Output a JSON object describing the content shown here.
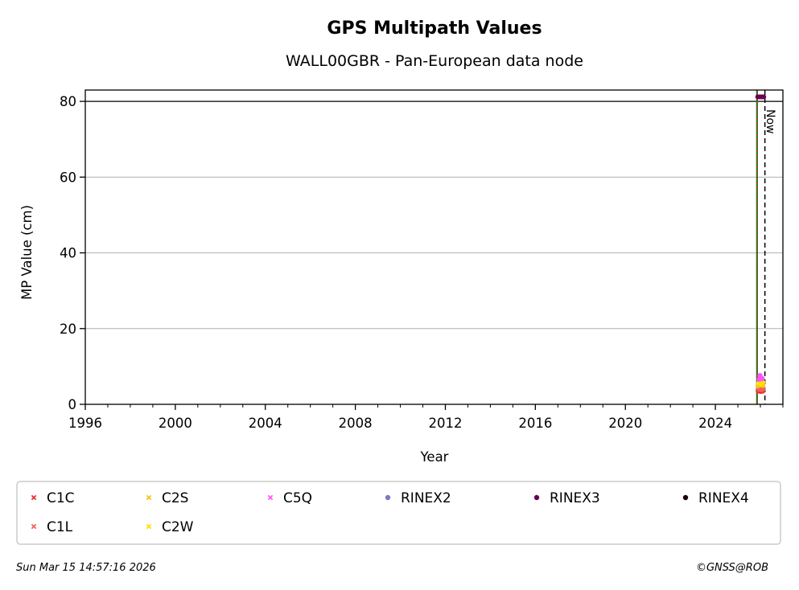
{
  "chart_data": {
    "type": "scatter",
    "title": "GPS Multipath Values",
    "subtitle": "WALL00GBR - Pan-European data node",
    "xlabel": "Year",
    "ylabel": "MP Value (cm)",
    "xlim": [
      1996,
      2027
    ],
    "ylim": [
      0,
      83
    ],
    "x_ticks": [
      1996,
      2000,
      2004,
      2008,
      2012,
      2016,
      2020,
      2024
    ],
    "y_ticks": [
      0,
      20,
      40,
      60,
      80
    ],
    "grid": "horizontal",
    "reference_line_y": 80,
    "now_label": "Now",
    "now_x": 2026.2,
    "green_line_x": 2025.85,
    "legend_position": "bottom",
    "series": [
      {
        "name": "C1C",
        "color": "#e8322b",
        "marker": "x",
        "points": [
          [
            2025.9,
            3.6
          ],
          [
            2026.0,
            3.4
          ],
          [
            2026.1,
            3.5
          ],
          [
            2025.95,
            3.8
          ]
        ]
      },
      {
        "name": "C1L",
        "color": "#f0625a",
        "marker": "x",
        "points": [
          [
            2025.92,
            4.0
          ],
          [
            2026.05,
            3.9
          ],
          [
            2026.12,
            4.1
          ]
        ]
      },
      {
        "name": "C2S",
        "color": "#f5c518",
        "marker": "x",
        "points": [
          [
            2025.9,
            4.9
          ],
          [
            2026.0,
            5.2
          ],
          [
            2026.1,
            5.0
          ]
        ]
      },
      {
        "name": "C2W",
        "color": "#ffe000",
        "marker": "x",
        "points": [
          [
            2025.93,
            5.6
          ],
          [
            2026.03,
            5.4
          ],
          [
            2026.11,
            5.8
          ]
        ]
      },
      {
        "name": "C5Q",
        "color": "#ff55ff",
        "marker": "x",
        "points": [
          [
            2025.95,
            6.6
          ],
          [
            2026.0,
            7.2
          ],
          [
            2026.08,
            6.8
          ],
          [
            2025.98,
            7.6
          ]
        ]
      },
      {
        "name": "RINEX2",
        "color": "#7b7bc2",
        "marker": "o",
        "points": []
      },
      {
        "name": "RINEX3",
        "color": "#6a0050",
        "marker": "o",
        "points": [
          [
            2025.88,
            81.2
          ],
          [
            2025.95,
            81.2
          ],
          [
            2026.02,
            81.2
          ],
          [
            2026.09,
            81.2
          ],
          [
            2026.15,
            81.2
          ]
        ]
      },
      {
        "name": "RINEX4",
        "color": "#1a0010",
        "marker": "o",
        "points": []
      }
    ]
  },
  "footer": {
    "timestamp": "Sun Mar 15 14:57:16 2026",
    "copyright": "©GNSS@ROB"
  }
}
